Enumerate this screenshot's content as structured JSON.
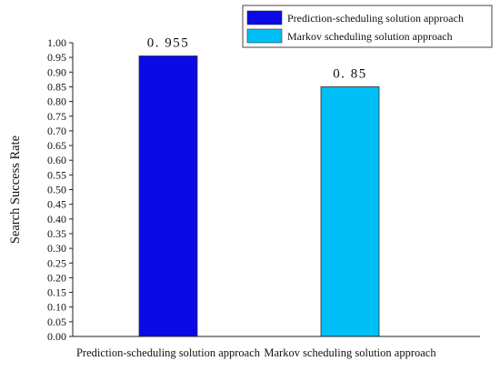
{
  "chart_data": {
    "type": "bar",
    "categories": [
      "Prediction-scheduling solution approach",
      "Markov scheduling solution approach"
    ],
    "values": [
      0.955,
      0.85
    ],
    "data_labels": [
      "0. 955",
      "0. 85"
    ],
    "colors": [
      "#0a0ae6",
      "#00bff7"
    ],
    "ylabel": "Search Success Rate",
    "xlabel": "",
    "ylim": [
      0,
      1.0
    ],
    "yticks": [
      "0.00",
      "0.05",
      "0.10",
      "0.15",
      "0.20",
      "0.25",
      "0.30",
      "0.35",
      "0.40",
      "0.45",
      "0.50",
      "0.55",
      "0.60",
      "0.65",
      "0.70",
      "0.75",
      "0.80",
      "0.85",
      "0.90",
      "0.95",
      "1.00"
    ],
    "legend": {
      "placement": "top-right",
      "entries": [
        {
          "label": "Prediction-scheduling solution approach",
          "color": "#0a0ae6"
        },
        {
          "label": "Markov scheduling solution approach",
          "color": "#00bff7"
        }
      ]
    },
    "grid": false
  }
}
